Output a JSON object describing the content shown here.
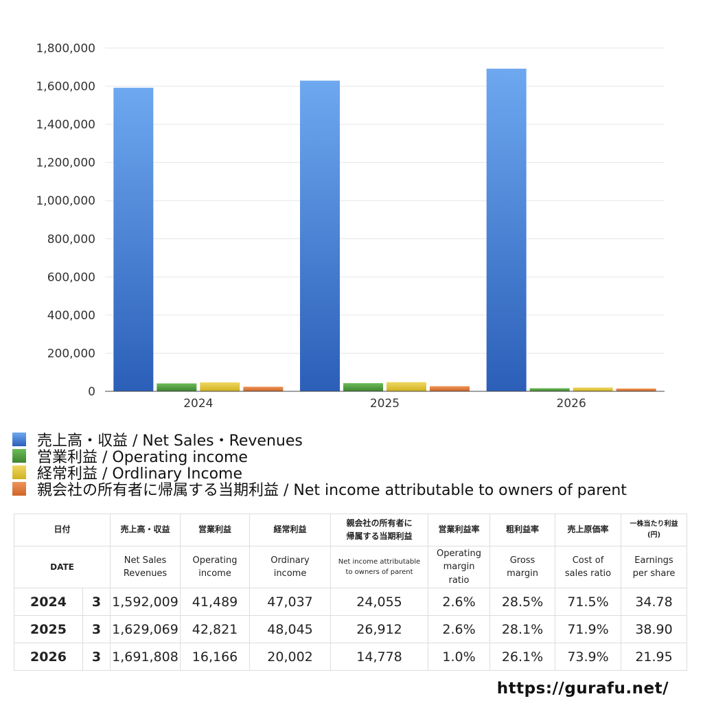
{
  "chart_data": {
    "type": "bar",
    "categories": [
      "2024",
      "2025",
      "2026"
    ],
    "ylim": [
      0,
      1800000
    ],
    "yticks": [
      "0",
      "200,000",
      "400,000",
      "600,000",
      "800,000",
      "1,000,000",
      "1,200,000",
      "1,400,000",
      "1,600,000",
      "1,800,000"
    ],
    "grid": true,
    "legend_position": "bottom",
    "series": [
      {
        "name": "売上高・収益 / Net Sales・Revenues",
        "values": [
          1592009,
          1629069,
          1691808
        ],
        "color": "#3f7fd8",
        "color_light": "#6ea8f0",
        "color_dark": "#2b5fb8"
      },
      {
        "name": "営業利益 / Operating income",
        "values": [
          41489,
          42821,
          16166
        ],
        "color": "#4f9e3f",
        "color_light": "#6cbb58",
        "color_dark": "#3d8530"
      },
      {
        "name": "経常利益 / Ordlinary Income",
        "values": [
          47037,
          48045,
          20002
        ],
        "color": "#e1c43a",
        "color_light": "#efd862",
        "color_dark": "#d0b020"
      },
      {
        "name": "親会社の所有者に帰属する当期利益 / Net income attributable to owners of parent",
        "values": [
          24055,
          26912,
          14778
        ],
        "color": "#e0793a",
        "color_light": "#ee9458",
        "color_dark": "#cf6528"
      }
    ]
  },
  "table": {
    "header_jp": {
      "date": "日付",
      "sales": "売上高・収益",
      "operating": "営業利益",
      "ordinary": "経常利益",
      "net_line1": "親会社の所有者に",
      "net_line2": "帰属する当期利益",
      "op_margin": "営業利益率",
      "gross": "粗利益率",
      "cost": "売上原価率",
      "eps_line1": "一株当たり利益",
      "eps_line2": "(円)"
    },
    "header_en": {
      "date": "DATE",
      "sales_line1": "Net Sales",
      "sales_line2": "Revenues",
      "operating_line1": "Operating",
      "operating_line2": "income",
      "ordinary_line1": "Ordinary",
      "ordinary_line2": "income",
      "net_line1": "Net income attributable",
      "net_line2": "to owners of parent",
      "op_margin_line1": "Operating",
      "op_margin_line2": "margin",
      "op_margin_line3": "ratio",
      "gross_line1": "Gross",
      "gross_line2": "margin",
      "cost_line1": "Cost of",
      "cost_line2": "sales ratio",
      "eps_line1": "Earnings",
      "eps_line2": "per share"
    },
    "rows": [
      {
        "year": "2024",
        "month": "3",
        "sales": "1,592,009",
        "operating": "41,489",
        "ordinary": "47,037",
        "net": "24,055",
        "op_margin": "2.6%",
        "gross": "28.5%",
        "cost": "71.5%",
        "eps": "34.78"
      },
      {
        "year": "2025",
        "month": "3",
        "sales": "1,629,069",
        "operating": "42,821",
        "ordinary": "48,045",
        "net": "26,912",
        "op_margin": "2.6%",
        "gross": "28.1%",
        "cost": "71.9%",
        "eps": "38.90"
      },
      {
        "year": "2026",
        "month": "3",
        "sales": "1,691,808",
        "operating": "16,166",
        "ordinary": "20,002",
        "net": "14,778",
        "op_margin": "1.0%",
        "gross": "26.1%",
        "cost": "73.9%",
        "eps": "21.95"
      }
    ]
  },
  "footer": {
    "url": "https://gurafu.net/"
  }
}
